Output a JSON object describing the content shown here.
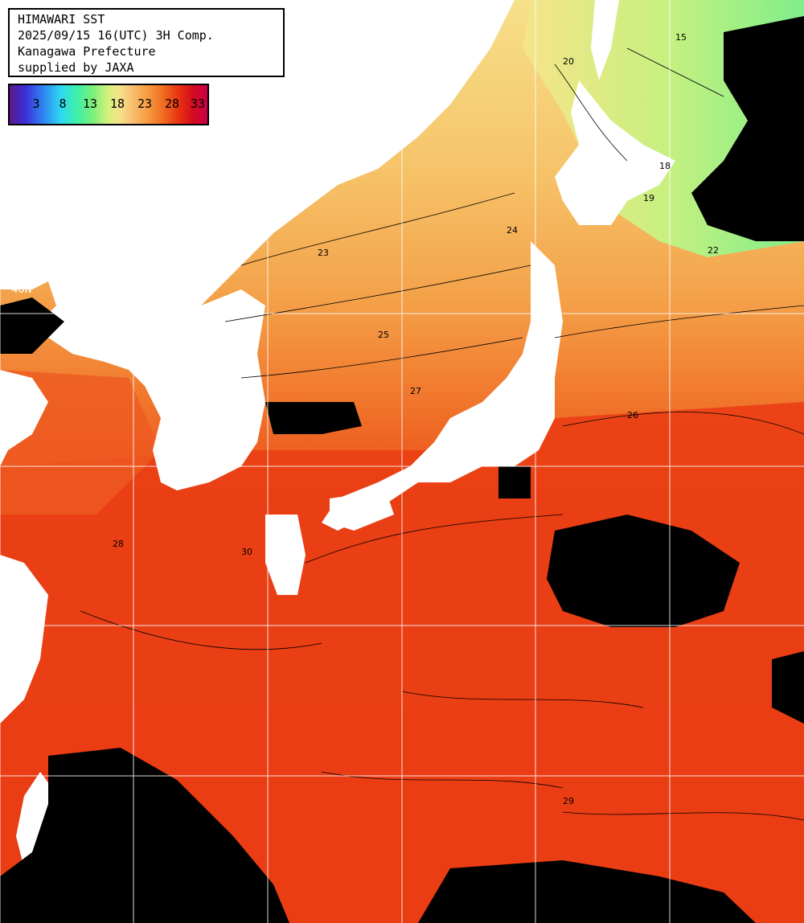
{
  "header": {
    "lines": [
      "HIMAWARI SST",
      "2025/09/15 16(UTC) 3H Comp.",
      "Kanagawa Prefecture",
      "supplied by JAXA"
    ]
  },
  "colorbar": {
    "labels": [
      "3",
      "8",
      "13",
      "18",
      "23",
      "28",
      "33"
    ]
  },
  "grid_labels": {
    "lat_40": "40N"
  },
  "colors": {
    "land": "#ffffff",
    "cloud": "#000000",
    "grid": "#ffffff",
    "contour": "#000000"
  },
  "contour_labels": [
    "20",
    "22",
    "23",
    "24",
    "25",
    "26",
    "27",
    "28",
    "29",
    "30",
    "18",
    "19",
    "15"
  ]
}
